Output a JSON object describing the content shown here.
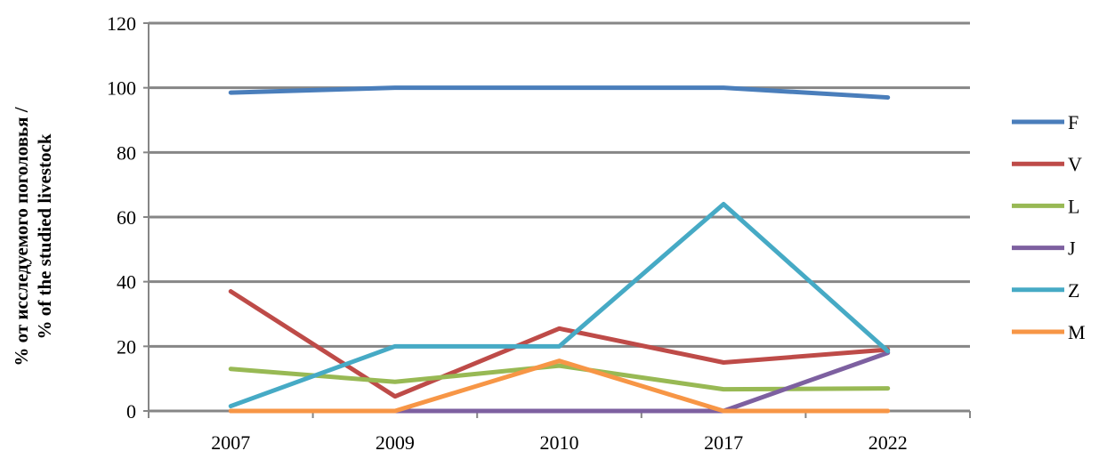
{
  "chart_data": {
    "type": "line",
    "title": "",
    "xlabel": "",
    "ylabel_line1": "% от исследуемого поголовья /",
    "ylabel_line2": "% of the studied livestock",
    "categories": [
      "2007",
      "2009",
      "2010",
      "2017",
      "2022"
    ],
    "ylim": [
      0,
      120
    ],
    "yticks": [
      0,
      20,
      40,
      60,
      80,
      100,
      120
    ],
    "grid": true,
    "legend_position": "right",
    "series": [
      {
        "name": "F",
        "color": "#4A7EBB",
        "values": [
          98.5,
          100,
          100,
          100,
          97
        ]
      },
      {
        "name": "V",
        "color": "#BE4B48",
        "values": [
          37,
          4.5,
          25.5,
          15,
          19
        ]
      },
      {
        "name": "L",
        "color": "#98B954",
        "values": [
          13,
          9,
          14,
          6.7,
          7
        ]
      },
      {
        "name": "J",
        "color": "#7D60A0",
        "values": [
          0,
          0,
          0,
          0,
          18
        ]
      },
      {
        "name": "Z",
        "color": "#46AAC5",
        "values": [
          1.5,
          20,
          20,
          64,
          18.5
        ]
      },
      {
        "name": "M",
        "color": "#F79646",
        "values": [
          0,
          0,
          15.5,
          0,
          0
        ]
      }
    ]
  }
}
